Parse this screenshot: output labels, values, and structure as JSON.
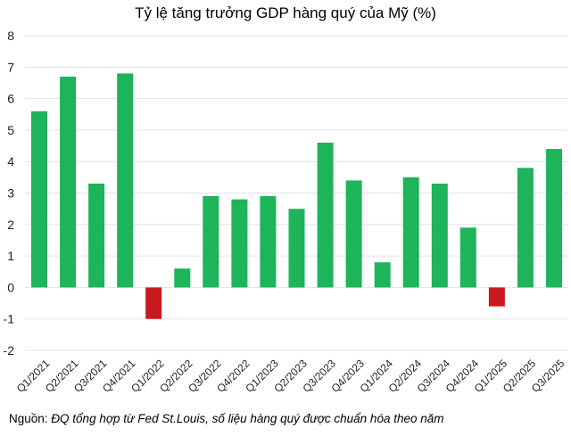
{
  "chart_data": {
    "type": "bar",
    "title": "Tỷ lệ tăng trưởng GDP hàng quý của Mỹ (%)",
    "xlabel": "",
    "ylabel": "",
    "ylim": [
      -2,
      8
    ],
    "yticks": [
      "8",
      "7",
      "6",
      "5",
      "4",
      "3",
      "2",
      "1",
      "0",
      "-1",
      "-2"
    ],
    "ytick_values": [
      8,
      7,
      6,
      5,
      4,
      3,
      2,
      1,
      0,
      -1,
      -2
    ],
    "grid": true,
    "legend": "none",
    "categories": [
      "Q1/2021",
      "Q2/2021",
      "Q3/2021",
      "Q4/2021",
      "Q1/2022",
      "Q2/2022",
      "Q3/2022",
      "Q4/2022",
      "Q1/2023",
      "Q2/2023",
      "Q3/2023",
      "Q4/2023",
      "Q1/2024",
      "Q2/2024",
      "Q3/2024",
      "Q4/2024",
      "Q1/2025",
      "Q2/2025",
      "Q3/2025"
    ],
    "values": [
      5.6,
      6.7,
      3.3,
      6.8,
      -1.0,
      0.6,
      2.9,
      2.8,
      2.9,
      2.5,
      4.6,
      3.4,
      0.8,
      3.5,
      3.3,
      1.9,
      -0.6,
      3.8,
      4.4
    ],
    "colors": {
      "positive": "#1db45a",
      "negative": "#c8191e",
      "grid": "#e3e3e3"
    }
  },
  "footer": {
    "source_label": "Nguồn: ",
    "source_text": "ĐQ tổng hợp từ Fed St.Louis, số liệu hàng quý được chuẩn hóa theo năm"
  }
}
